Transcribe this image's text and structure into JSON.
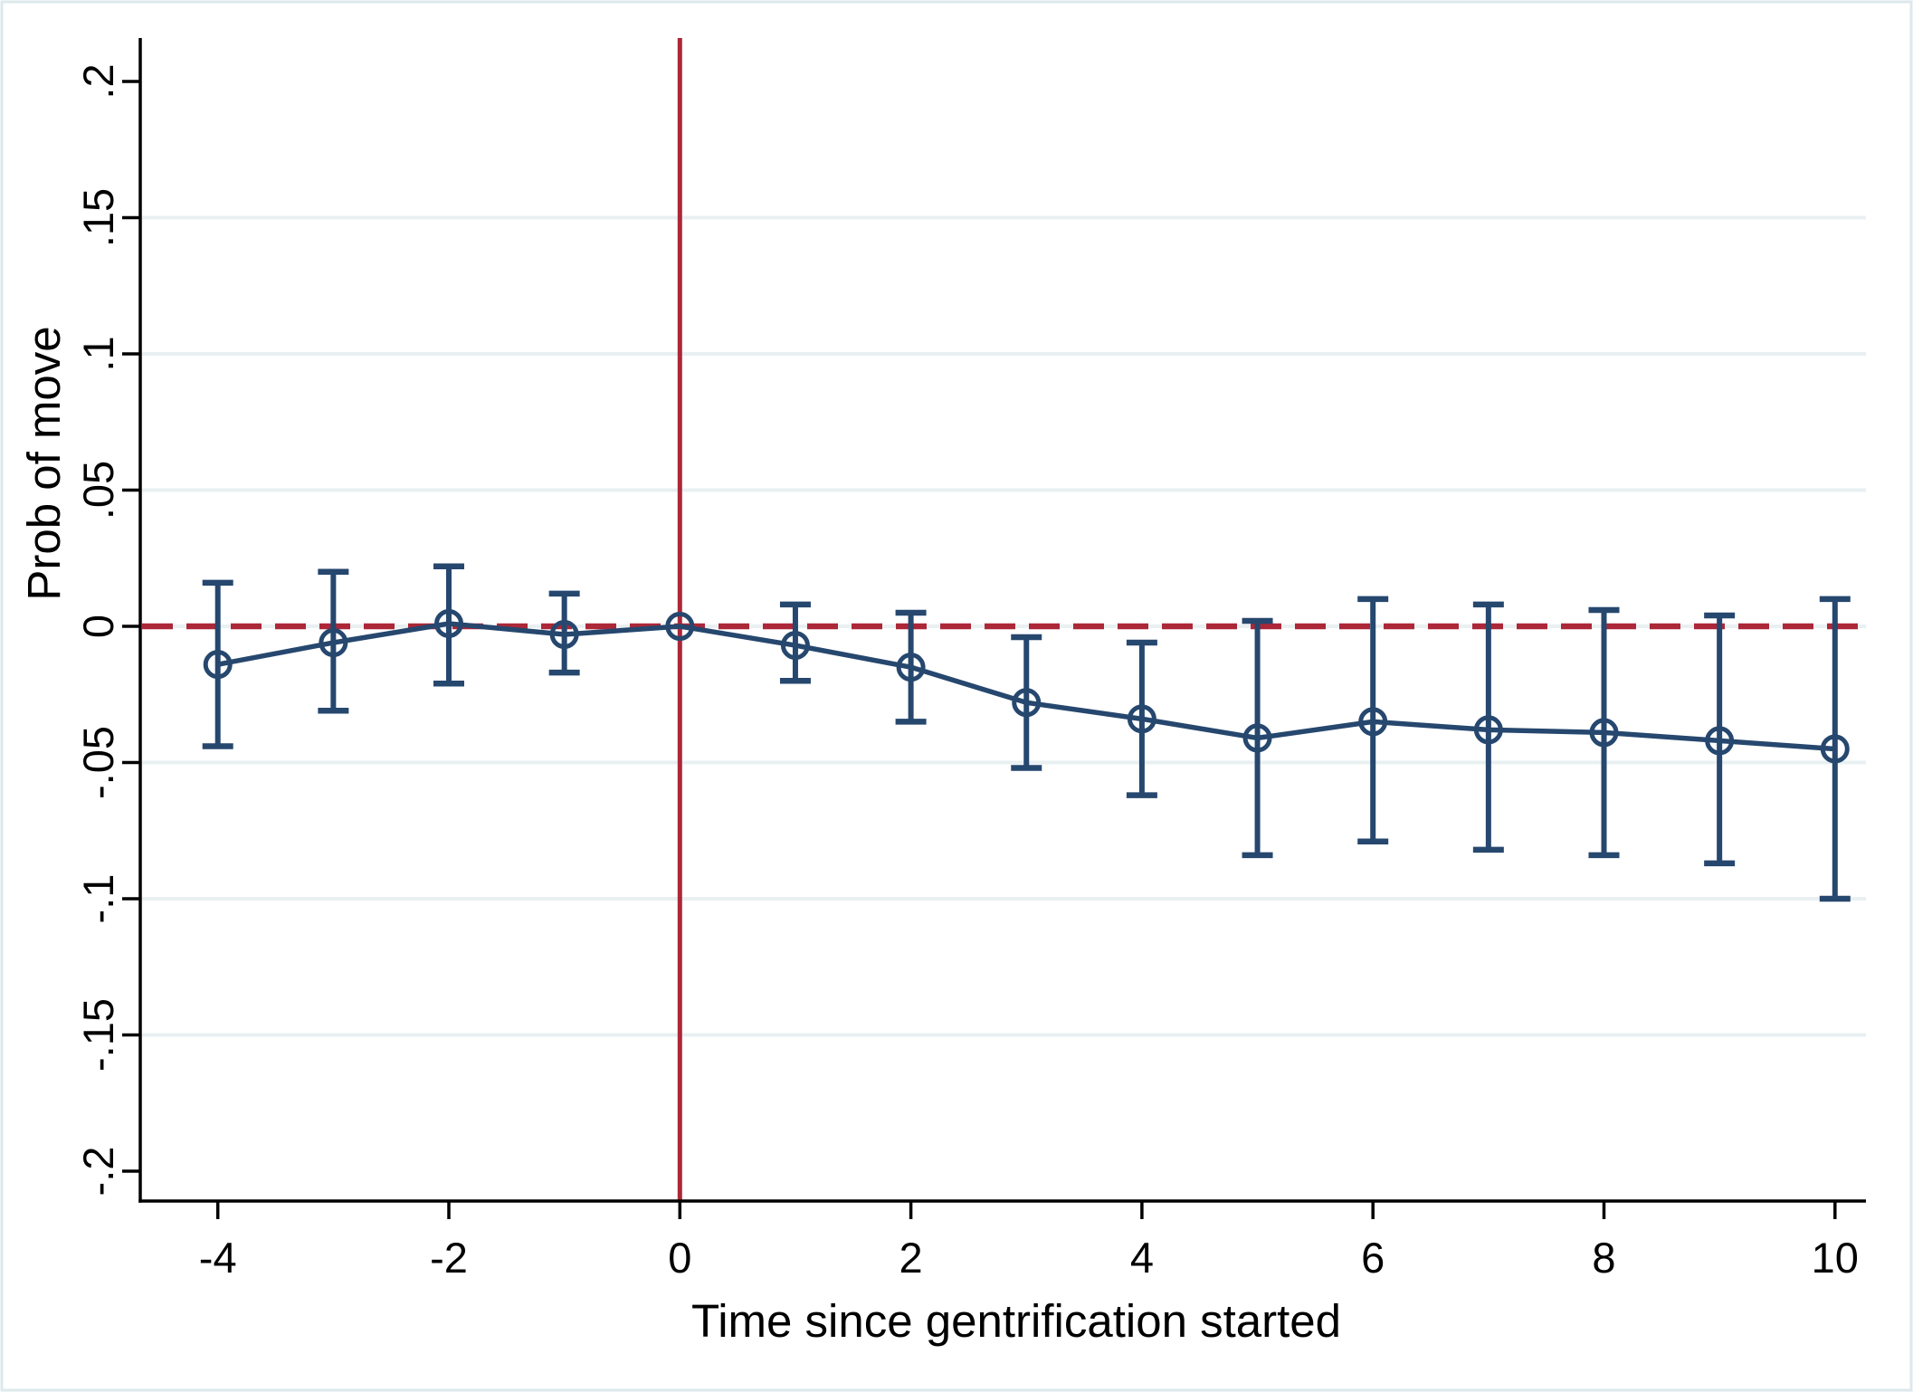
{
  "figure": {
    "ylabel": "Prob of move",
    "xlabel": "Time since gentrification started"
  },
  "colors": {
    "series": "#26476e",
    "reference": "#ac2738",
    "gridline": "#e9f0f2",
    "axis": "#000000",
    "background": "#ffffff",
    "figure_border": "#dde9ec"
  },
  "chart_data": {
    "type": "line",
    "title": "",
    "xlabel": "Time since gentrification started",
    "ylabel": "Prob of move",
    "xlim": [
      -4.7,
      10.3
    ],
    "ylim": [
      -0.21,
      0.215
    ],
    "grid": "horizontal",
    "legend_position": "none",
    "x_ticks": [
      {
        "v": -4,
        "label": "-4"
      },
      {
        "v": -2,
        "label": "-2"
      },
      {
        "v": 0,
        "label": "0"
      },
      {
        "v": 2,
        "label": "2"
      },
      {
        "v": 4,
        "label": "4"
      },
      {
        "v": 6,
        "label": "6"
      },
      {
        "v": 8,
        "label": "8"
      },
      {
        "v": 10,
        "label": "10"
      }
    ],
    "y_ticks": [
      {
        "v": 0.2,
        "label": ".2"
      },
      {
        "v": 0.15,
        "label": ".15"
      },
      {
        "v": 0.1,
        "label": ".1"
      },
      {
        "v": 0.05,
        "label": ".05"
      },
      {
        "v": 0,
        "label": "0"
      },
      {
        "v": -0.05,
        "label": "-.05"
      },
      {
        "v": -0.1,
        "label": "-.1"
      },
      {
        "v": -0.15,
        "label": "-.15"
      },
      {
        "v": -0.2,
        "label": "-.2"
      }
    ],
    "gridline_values": [
      0.15,
      0.1,
      0.05,
      0,
      -0.05,
      -0.1,
      -0.15
    ],
    "series": [
      {
        "name": "Prob of move (point estimate with 95% CI)",
        "marker": "hollow-circle",
        "x": [
          -4,
          -3,
          -2,
          -1,
          0,
          1,
          2,
          3,
          4,
          5,
          6,
          7,
          8,
          9,
          10
        ],
        "values": [
          -0.014,
          -0.006,
          0.001,
          -0.003,
          0.0,
          -0.007,
          -0.015,
          -0.028,
          -0.034,
          -0.041,
          -0.035,
          -0.038,
          -0.039,
          -0.042,
          -0.045
        ],
        "ci_low": [
          -0.044,
          -0.031,
          -0.021,
          -0.017,
          null,
          -0.02,
          -0.035,
          -0.052,
          -0.062,
          -0.084,
          -0.079,
          -0.082,
          -0.084,
          -0.087,
          -0.1
        ],
        "ci_high": [
          0.016,
          0.02,
          0.022,
          0.012,
          null,
          0.008,
          0.005,
          -0.004,
          -0.006,
          0.002,
          0.01,
          0.008,
          0.006,
          0.004,
          0.01
        ]
      }
    ],
    "reference_lines": [
      {
        "orientation": "horizontal",
        "value": 0,
        "style": "dashed"
      },
      {
        "orientation": "vertical",
        "value": 0,
        "style": "solid"
      }
    ]
  }
}
